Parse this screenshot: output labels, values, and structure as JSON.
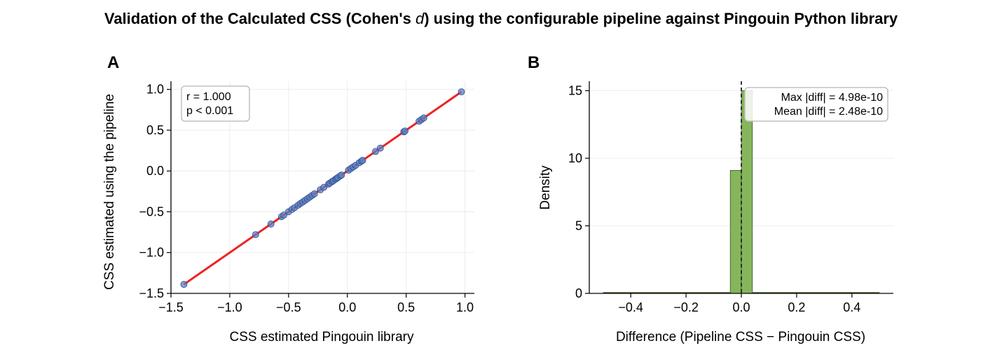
{
  "figure": {
    "title_before": "Validation of the Calculated CSS (Cohen's ",
    "title_symbol": "d",
    "title_after": ") using the configurable pipeline against Pingouin Python library"
  },
  "colors": {
    "fit_line": "#ee2222",
    "scatter_fill": "#5b7fc6",
    "scatter_edge": "#2c4a85",
    "hist_fill": "#86b55c",
    "hist_edge": "#3a5a22",
    "grid": "#e8e8e8"
  },
  "chart_data": [
    {
      "type": "scatter",
      "panel": "A",
      "xlabel": "CSS estimated Pingouin library",
      "ylabel": "CSS estimated using the pipeline",
      "xlim": [
        -1.5,
        1.08
      ],
      "ylim": [
        -1.5,
        1.1
      ],
      "xticks": [
        -1.5,
        -1.0,
        -0.5,
        0.0,
        0.5,
        1.0
      ],
      "xtick_labels": [
        "−1.5",
        "−1.0",
        "−0.5",
        "0.0",
        "0.5",
        "1.0"
      ],
      "yticks": [
        -1.5,
        -1.0,
        -0.5,
        0.0,
        0.5,
        1.0
      ],
      "ytick_labels": [
        "−1.5",
        "−1.0",
        "−0.5",
        "0.0",
        "0.5",
        "1.0"
      ],
      "grid": true,
      "annotation": [
        "r = 1.000",
        "p < 0.001"
      ],
      "fit_line": {
        "x": [
          -1.39,
          0.97
        ],
        "y": [
          -1.39,
          0.97
        ]
      },
      "points": [
        [
          -1.39,
          -1.39
        ],
        [
          -0.78,
          -0.78
        ],
        [
          -0.65,
          -0.65
        ],
        [
          -0.56,
          -0.56
        ],
        [
          -0.54,
          -0.54
        ],
        [
          -0.5,
          -0.5
        ],
        [
          -0.47,
          -0.47
        ],
        [
          -0.45,
          -0.45
        ],
        [
          -0.42,
          -0.42
        ],
        [
          -0.4,
          -0.4
        ],
        [
          -0.38,
          -0.38
        ],
        [
          -0.36,
          -0.36
        ],
        [
          -0.34,
          -0.34
        ],
        [
          -0.32,
          -0.32
        ],
        [
          -0.3,
          -0.3
        ],
        [
          -0.28,
          -0.28
        ],
        [
          -0.23,
          -0.23
        ],
        [
          -0.2,
          -0.2
        ],
        [
          -0.16,
          -0.16
        ],
        [
          -0.15,
          -0.15
        ],
        [
          -0.13,
          -0.13
        ],
        [
          -0.12,
          -0.12
        ],
        [
          -0.1,
          -0.1
        ],
        [
          -0.09,
          -0.09
        ],
        [
          -0.08,
          -0.08
        ],
        [
          -0.06,
          -0.06
        ],
        [
          -0.05,
          -0.05
        ],
        [
          0.01,
          0.01
        ],
        [
          0.03,
          0.03
        ],
        [
          0.05,
          0.05
        ],
        [
          0.07,
          0.07
        ],
        [
          0.1,
          0.1
        ],
        [
          0.12,
          0.12
        ],
        [
          0.13,
          0.13
        ],
        [
          0.24,
          0.24
        ],
        [
          0.28,
          0.28
        ],
        [
          0.48,
          0.48
        ],
        [
          0.49,
          0.49
        ],
        [
          0.61,
          0.61
        ],
        [
          0.63,
          0.63
        ],
        [
          0.65,
          0.65
        ],
        [
          0.97,
          0.97
        ]
      ]
    },
    {
      "type": "bar",
      "panel": "B",
      "xlabel": "Difference (Pipeline CSS − Pingouin CSS)",
      "ylabel": "Density",
      "xlim": [
        -0.55,
        0.55
      ],
      "ylim": [
        0,
        15.7
      ],
      "xticks": [
        -0.4,
        -0.2,
        0.0,
        0.2,
        0.4
      ],
      "xtick_labels": [
        "−0.4",
        "−0.2",
        "0.0",
        "0.2",
        "0.4"
      ],
      "yticks": [
        0,
        5,
        10,
        15
      ],
      "ytick_labels": [
        "0",
        "5",
        "10",
        "15"
      ],
      "grid": true,
      "annotation": [
        "Max |diff| = 4.98e-10",
        "Mean |diff| = 2.48e-10"
      ],
      "vline_x": 0.0,
      "baseline_range": [
        -0.5,
        0.5
      ],
      "bins": [
        {
          "x0": -0.04,
          "x1": 0.0,
          "density": 9.1
        },
        {
          "x0": 0.0,
          "x1": 0.04,
          "density": 15.0
        }
      ]
    }
  ]
}
